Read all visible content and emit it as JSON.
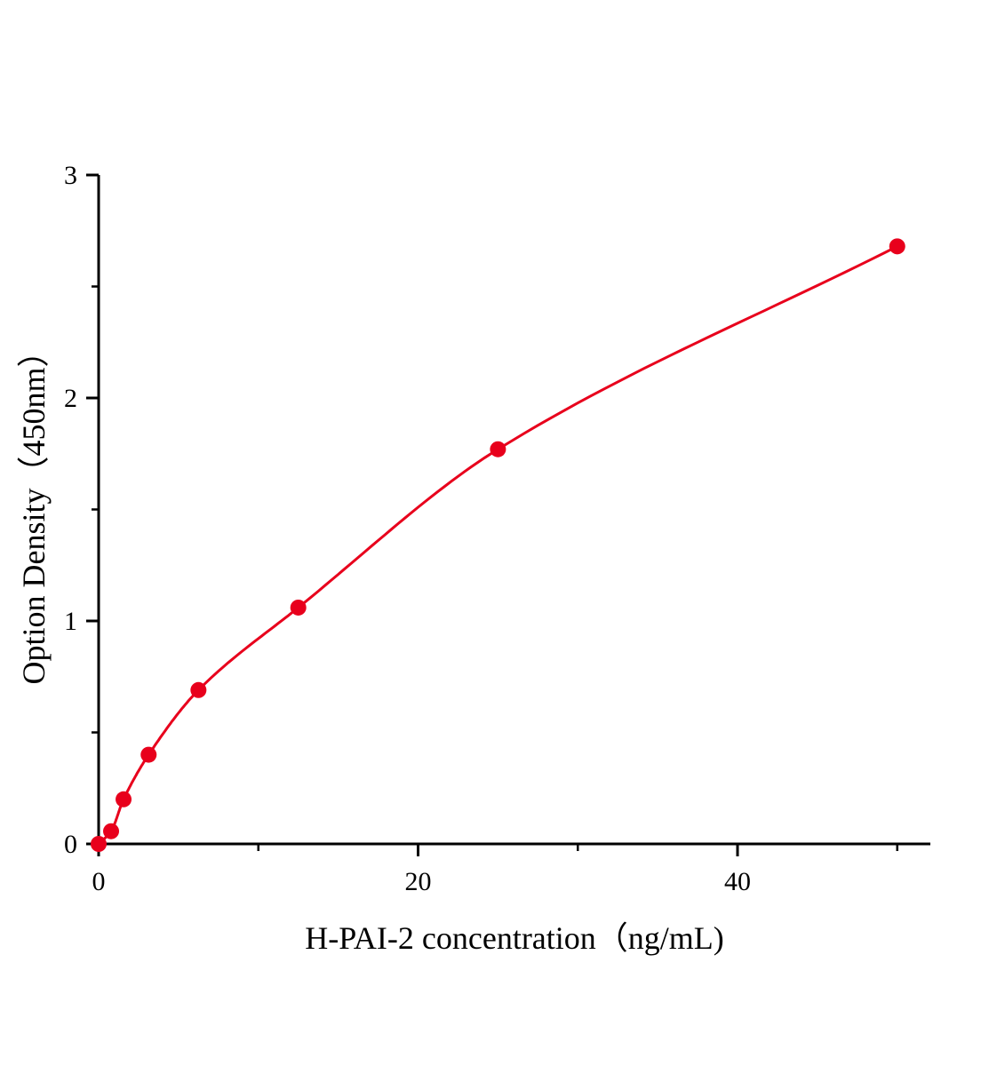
{
  "chart_data": {
    "type": "scatter",
    "title": "",
    "xlabel": "H-PAI-2 concentration（ng/mL)",
    "ylabel": "Option Density（450nm）",
    "xlim": [
      0,
      52
    ],
    "ylim": [
      0,
      3
    ],
    "x_ticks": [
      "0",
      "20",
      "40"
    ],
    "y_ticks": [
      "0",
      "1",
      "2",
      "3"
    ],
    "grid": false,
    "series": [
      {
        "x": [
          0,
          0.78,
          1.56,
          3.13,
          6.25,
          12.5,
          25,
          50
        ],
        "y": [
          0,
          0.057,
          0.2,
          0.4,
          0.69,
          1.06,
          1.77,
          2.68
        ],
        "color": "#e8001c",
        "fit_curve": true
      }
    ]
  }
}
